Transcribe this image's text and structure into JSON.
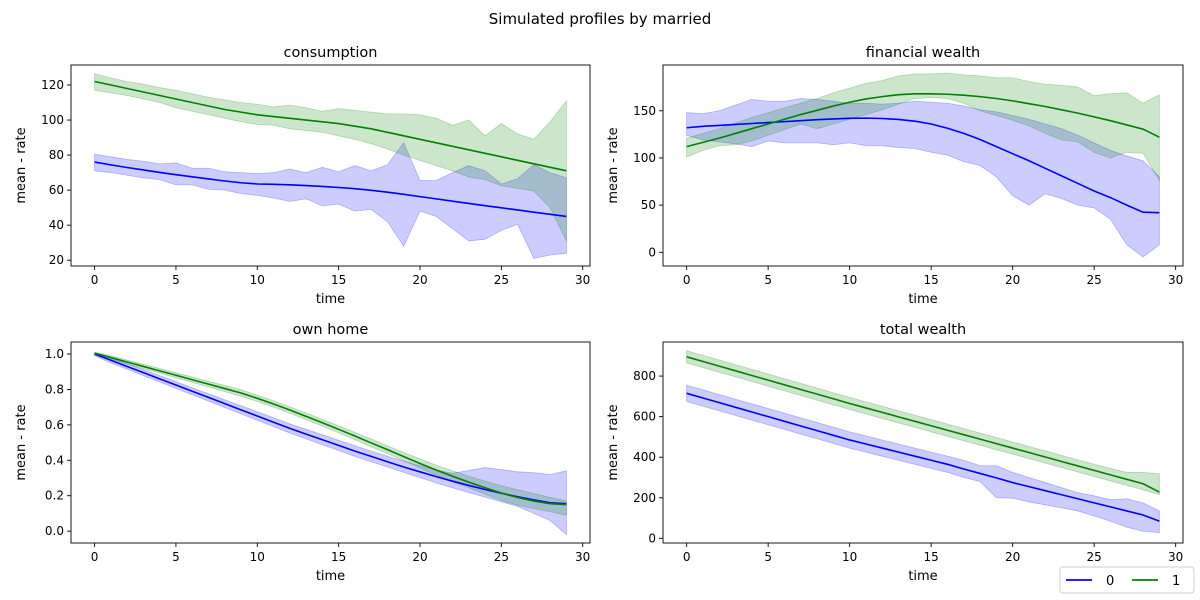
{
  "figure": {
    "suptitle": "Simulated profiles by married"
  },
  "legend": {
    "placement": "bottom-right",
    "entries": [
      {
        "label": "0",
        "color": "#0000ff"
      },
      {
        "label": "1",
        "color": "#008000"
      }
    ]
  },
  "chart_data": [
    {
      "type": "line",
      "title": "consumption",
      "xlabel": "time",
      "ylabel": "mean - rate",
      "xlim": [
        -1.45,
        30.45
      ],
      "ylim": [
        16.7,
        131.4
      ],
      "xticks": [
        0,
        5,
        10,
        15,
        20,
        25,
        30
      ],
      "yticks": [
        20,
        40,
        60,
        80,
        100,
        120
      ],
      "grid": false,
      "x": [
        0,
        1,
        2,
        3,
        4,
        5,
        6,
        7,
        8,
        9,
        10,
        11,
        12,
        13,
        14,
        15,
        16,
        17,
        18,
        19,
        20,
        21,
        22,
        23,
        24,
        25,
        26,
        27,
        28,
        29
      ],
      "series": [
        {
          "name": "0",
          "color": "#0000ff",
          "mean": [
            76,
            74.4,
            72.9,
            71.5,
            70.1,
            68.8,
            67.6,
            66.4,
            65.2,
            64.2,
            63.5,
            63.3,
            63,
            62.6,
            62.1,
            61.5,
            60.8,
            59.9,
            58.8,
            57.6,
            56.3,
            55,
            53.7,
            52.4,
            51.1,
            49.9,
            48.7,
            47.4,
            46.2,
            45
          ],
          "upper": [
            80.5,
            79,
            77.5,
            76.5,
            75,
            75.5,
            72.5,
            72.5,
            70.5,
            70,
            69.5,
            70,
            72,
            70,
            73,
            70.5,
            74,
            71,
            74.5,
            87,
            65.5,
            65.5,
            70,
            74,
            71,
            63.5,
            66.5,
            74.5,
            70,
            67
          ],
          "lower": [
            71,
            70,
            68.5,
            67,
            66,
            63,
            63,
            60.5,
            60,
            58,
            57,
            55.5,
            53.5,
            55,
            51,
            52,
            48,
            49,
            42,
            28,
            48,
            45,
            38,
            31,
            32,
            37,
            40.5,
            21,
            23,
            24
          ]
        },
        {
          "name": "1",
          "color": "#008000",
          "mean": [
            122,
            120,
            118,
            116,
            114,
            112,
            110,
            108,
            106,
            104.5,
            103,
            102,
            101,
            100,
            99,
            98,
            96.5,
            95,
            93,
            91,
            89,
            87,
            85,
            83,
            81,
            79,
            77,
            75,
            73,
            71
          ],
          "upper": [
            126.5,
            124,
            122,
            120.5,
            118.5,
            117,
            115,
            113,
            111.5,
            110,
            109,
            107.5,
            108.5,
            107,
            105,
            106.5,
            105.5,
            104.5,
            103.5,
            103.5,
            103,
            101,
            97,
            100,
            91,
            98,
            92,
            89,
            99,
            111
          ],
          "lower": [
            117,
            115.5,
            114,
            112,
            110,
            107,
            105,
            103,
            101,
            99,
            97.5,
            97,
            95,
            94,
            93,
            91,
            89,
            86.5,
            83.5,
            80,
            77,
            74,
            71,
            67.5,
            66,
            62.5,
            61,
            59.5,
            50,
            31
          ]
        }
      ]
    },
    {
      "type": "line",
      "title": "financial wealth",
      "xlabel": "time",
      "ylabel": "mean - rate",
      "xlim": [
        -1.45,
        30.45
      ],
      "ylim": [
        -14.5,
        198.5
      ],
      "xticks": [
        0,
        5,
        10,
        15,
        20,
        25,
        30
      ],
      "yticks": [
        0,
        50,
        100,
        150
      ],
      "grid": false,
      "x": [
        0,
        1,
        2,
        3,
        4,
        5,
        6,
        7,
        8,
        9,
        10,
        11,
        12,
        13,
        14,
        15,
        16,
        17,
        18,
        19,
        20,
        21,
        22,
        23,
        24,
        25,
        26,
        27,
        28,
        29
      ],
      "series": [
        {
          "name": "0",
          "color": "#0000ff",
          "mean": [
            132,
            133.5,
            134.5,
            135.5,
            136.5,
            137.5,
            138.5,
            139.5,
            140.5,
            141.3,
            142,
            142.2,
            141.8,
            140.8,
            139,
            136,
            131.5,
            126,
            119.5,
            112,
            104.5,
            97,
            89,
            81,
            73,
            65,
            58,
            50,
            42.5,
            42
          ],
          "upper": [
            148,
            147,
            150,
            156,
            162,
            160,
            160,
            163,
            162,
            160,
            158,
            158,
            157,
            158,
            160,
            159,
            158,
            155,
            151,
            149,
            145,
            141,
            136,
            131,
            124,
            116,
            108,
            102,
            97,
            80
          ],
          "lower": [
            124,
            119,
            117,
            115,
            112,
            118,
            116,
            116,
            116,
            114,
            116,
            113,
            113,
            111,
            110,
            106,
            103,
            96,
            92,
            80,
            60,
            50,
            62,
            57,
            50,
            47,
            35,
            8,
            -5,
            8
          ]
        },
        {
          "name": "1",
          "color": "#008000",
          "mean": [
            112,
            116.5,
            121,
            126,
            131,
            136,
            141,
            146,
            150.5,
            155,
            159,
            162.5,
            165,
            167,
            168,
            168,
            167.5,
            166.5,
            165,
            163,
            160.5,
            157.5,
            154.5,
            151,
            147.5,
            143.5,
            139.5,
            135,
            130.5,
            122
          ],
          "upper": [
            121,
            126,
            131,
            137,
            143,
            148,
            153,
            158,
            163,
            169,
            174,
            179,
            182,
            187,
            189,
            189,
            190,
            188,
            187,
            185,
            185,
            181,
            178,
            177,
            175,
            166,
            168,
            169,
            158,
            167
          ],
          "lower": [
            101,
            108,
            113,
            114,
            118,
            124,
            130,
            136,
            131,
            136,
            141,
            146,
            151,
            157,
            163,
            164,
            163,
            158,
            150,
            145,
            140,
            134,
            126,
            119,
            117,
            106,
            100,
            106,
            105,
            76
          ]
        }
      ]
    },
    {
      "type": "line",
      "title": "own home",
      "xlabel": "time",
      "ylabel": "mean - rate",
      "xlim": [
        -1.45,
        30.45
      ],
      "ylim": [
        -0.067,
        1.068
      ],
      "xticks": [
        0,
        5,
        10,
        15,
        20,
        25,
        30
      ],
      "yticks": [
        0.0,
        0.2,
        0.4,
        0.6,
        0.8,
        1.0
      ],
      "ytick_labels": [
        "0.0",
        "0.2",
        "0.4",
        "0.6",
        "0.8",
        "1.0"
      ],
      "grid": false,
      "x": [
        0,
        1,
        2,
        3,
        4,
        5,
        6,
        7,
        8,
        9,
        10,
        11,
        12,
        13,
        14,
        15,
        16,
        17,
        18,
        19,
        20,
        21,
        22,
        23,
        24,
        25,
        26,
        27,
        28,
        29
      ],
      "series": [
        {
          "name": "0",
          "color": "#0000ff",
          "mean": [
            1,
            0.965,
            0.93,
            0.895,
            0.86,
            0.825,
            0.79,
            0.755,
            0.72,
            0.685,
            0.65,
            0.615,
            0.58,
            0.548,
            0.516,
            0.484,
            0.452,
            0.422,
            0.392,
            0.362,
            0.335,
            0.308,
            0.282,
            0.258,
            0.235,
            0.214,
            0.194,
            0.176,
            0.16,
            0.155
          ],
          "upper": [
            1.005,
            0.98,
            0.946,
            0.912,
            0.878,
            0.844,
            0.81,
            0.776,
            0.742,
            0.708,
            0.674,
            0.64,
            0.606,
            0.575,
            0.544,
            0.513,
            0.482,
            0.452,
            0.423,
            0.395,
            0.37,
            0.345,
            0.327,
            0.342,
            0.359,
            0.347,
            0.335,
            0.33,
            0.32,
            0.34
          ],
          "lower": [
            0.99,
            0.95,
            0.914,
            0.878,
            0.842,
            0.806,
            0.77,
            0.734,
            0.698,
            0.662,
            0.626,
            0.59,
            0.554,
            0.521,
            0.488,
            0.455,
            0.422,
            0.392,
            0.362,
            0.332,
            0.302,
            0.272,
            0.245,
            0.218,
            0.192,
            0.166,
            0.14,
            0.1,
            0.06,
            -0.02
          ]
        },
        {
          "name": "1",
          "color": "#008000",
          "mean": [
            1.005,
            0.98,
            0.955,
            0.93,
            0.905,
            0.88,
            0.855,
            0.83,
            0.805,
            0.78,
            0.75,
            0.718,
            0.684,
            0.648,
            0.612,
            0.575,
            0.537,
            0.498,
            0.46,
            0.421,
            0.382,
            0.345,
            0.31,
            0.277,
            0.245,
            0.215,
            0.19,
            0.17,
            0.155,
            0.15
          ],
          "upper": [
            1.01,
            0.99,
            0.966,
            0.942,
            0.918,
            0.894,
            0.87,
            0.846,
            0.822,
            0.798,
            0.768,
            0.736,
            0.702,
            0.667,
            0.631,
            0.595,
            0.558,
            0.52,
            0.482,
            0.444,
            0.408,
            0.373,
            0.341,
            0.31,
            0.282,
            0.256,
            0.234,
            0.212,
            0.191,
            0.17
          ],
          "lower": [
            1.0,
            0.97,
            0.944,
            0.918,
            0.892,
            0.866,
            0.84,
            0.814,
            0.788,
            0.762,
            0.732,
            0.7,
            0.666,
            0.629,
            0.593,
            0.555,
            0.516,
            0.476,
            0.438,
            0.398,
            0.356,
            0.317,
            0.279,
            0.244,
            0.208,
            0.174,
            0.146,
            0.128,
            0.11,
            0.09
          ]
        }
      ]
    },
    {
      "type": "line",
      "title": "total wealth",
      "xlabel": "time",
      "ylabel": "mean - rate",
      "xlim": [
        -1.45,
        30.45
      ],
      "ylim": [
        -23,
        968
      ],
      "xticks": [
        0,
        5,
        10,
        15,
        20,
        25,
        30
      ],
      "yticks": [
        0,
        200,
        400,
        600,
        800
      ],
      "grid": false,
      "x": [
        0,
        1,
        2,
        3,
        4,
        5,
        6,
        7,
        8,
        9,
        10,
        11,
        12,
        13,
        14,
        15,
        16,
        17,
        18,
        19,
        20,
        21,
        22,
        23,
        24,
        25,
        26,
        27,
        28,
        29
      ],
      "series": [
        {
          "name": "0",
          "color": "#0000ff",
          "mean": [
            715,
            692,
            669,
            646,
            623,
            600,
            577,
            554,
            531,
            508,
            485,
            465,
            445,
            425,
            405,
            385,
            365,
            342,
            320,
            298,
            275,
            255,
            235,
            215,
            195,
            175,
            155,
            135,
            115,
            85
          ],
          "upper": [
            755,
            732,
            709,
            686,
            663,
            640,
            617,
            594,
            571,
            548,
            525,
            505,
            485,
            465,
            445,
            425,
            405,
            385,
            358,
            358,
            325,
            300,
            275,
            250,
            225,
            210,
            190,
            195,
            175,
            135
          ],
          "lower": [
            675,
            652,
            629,
            606,
            583,
            560,
            537,
            514,
            491,
            468,
            445,
            425,
            405,
            385,
            365,
            345,
            325,
            300,
            280,
            200,
            198,
            180,
            165,
            150,
            135,
            110,
            85,
            55,
            35,
            28
          ]
        },
        {
          "name": "1",
          "color": "#008000",
          "mean": [
            895,
            872,
            849,
            826,
            803,
            780,
            757,
            734,
            711,
            688,
            665,
            643,
            621,
            599,
            577,
            555,
            533,
            511,
            489,
            467,
            445,
            423,
            401,
            379,
            357,
            335,
            313,
            291,
            269,
            228
          ],
          "upper": [
            925,
            902,
            879,
            856,
            833,
            810,
            787,
            764,
            741,
            718,
            695,
            673,
            651,
            629,
            607,
            585,
            563,
            541,
            519,
            497,
            475,
            453,
            431,
            409,
            387,
            365,
            345,
            325,
            325,
            318
          ],
          "lower": [
            865,
            842,
            819,
            796,
            773,
            750,
            727,
            704,
            681,
            658,
            635,
            613,
            591,
            569,
            547,
            525,
            503,
            481,
            459,
            437,
            415,
            393,
            371,
            349,
            327,
            305,
            283,
            261,
            239,
            215
          ]
        }
      ]
    }
  ]
}
